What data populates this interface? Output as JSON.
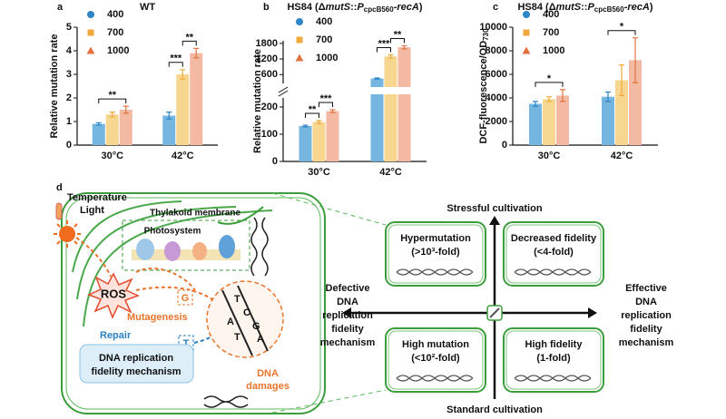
{
  "chart_data": [
    {
      "type": "bar",
      "panel": "a",
      "title_parts": [
        "WT"
      ],
      "y_label_parts": [
        "Relative mutation rate"
      ],
      "categories": [
        "30°C",
        "42°C"
      ],
      "series": [
        {
          "name": "400",
          "marker": "circle",
          "color": "#74b6e0",
          "marker_color": "#2f86c8",
          "values": [
            0.9,
            1.25
          ],
          "errors": [
            0.05,
            0.15
          ]
        },
        {
          "name": "700",
          "marker": "square",
          "color": "#f7d690",
          "marker_color": "#eea93a",
          "values": [
            1.3,
            3.0
          ],
          "errors": [
            0.1,
            0.2
          ]
        },
        {
          "name": "1000",
          "marker": "triangle",
          "color": "#f3b9a2",
          "marker_color": "#e2733f",
          "values": [
            1.5,
            3.9
          ],
          "errors": [
            0.15,
            0.2
          ]
        }
      ],
      "ylim": [
        0,
        5
      ],
      "yticks": [
        0,
        1,
        2,
        3,
        4,
        5
      ],
      "annotations": [
        "**",
        "***",
        "**"
      ]
    },
    {
      "type": "bar",
      "panel": "b",
      "title_parts": [
        "HS84 (Δ",
        "mutS",
        "::",
        "P",
        "cpcB560",
        "-recA",
        ")"
      ],
      "y_label_parts": [
        "Relative mutation rate"
      ],
      "categories": [
        "30°C",
        "42°C"
      ],
      "series": [
        {
          "name": "400",
          "marker": "circle",
          "color": "#74b6e0",
          "marker_color": "#2f86c8",
          "values": [
            130,
            450
          ],
          "errors": [
            3,
            20
          ]
        },
        {
          "name": "700",
          "marker": "square",
          "color": "#f7d690",
          "marker_color": "#eea93a",
          "values": [
            145,
            1300
          ],
          "errors": [
            5,
            60
          ]
        },
        {
          "name": "1000",
          "marker": "triangle",
          "color": "#f3b9a2",
          "marker_color": "#e2733f",
          "values": [
            185,
            1650
          ],
          "errors": [
            5,
            60
          ]
        }
      ],
      "ylim": [
        0,
        1900
      ],
      "axis_break": [
        220,
        400
      ],
      "yticks": [
        0,
        100,
        200,
        600,
        1200,
        1800
      ],
      "annotations": [
        "**",
        "***",
        "***",
        "**"
      ]
    },
    {
      "type": "bar",
      "panel": "c",
      "title_parts": [
        "HS84 (Δ",
        "mutS",
        "::",
        "P",
        "cpcB560",
        "-recA",
        ")"
      ],
      "y_label_parts": [
        "DCF-fluorescence/OD",
        "730"
      ],
      "categories": [
        "30°C",
        "42°C"
      ],
      "series": [
        {
          "name": "400",
          "marker": "circle",
          "color": "#74b6e0",
          "marker_color": "#2f86c8",
          "values": [
            3500,
            4100
          ],
          "errors": [
            200,
            400
          ]
        },
        {
          "name": "700",
          "marker": "square",
          "color": "#f7d690",
          "marker_color": "#eea93a",
          "values": [
            3900,
            5500
          ],
          "errors": [
            200,
            1300
          ]
        },
        {
          "name": "1000",
          "marker": "triangle",
          "color": "#f3b9a2",
          "marker_color": "#e2733f",
          "values": [
            4200,
            7200
          ],
          "errors": [
            500,
            1900
          ]
        }
      ],
      "ylim": [
        0,
        10000
      ],
      "yticks": [
        0,
        2000,
        4000,
        6000,
        8000,
        10000
      ],
      "annotations": [
        "*",
        "*"
      ]
    }
  ],
  "diagram": {
    "panel": "d",
    "temperature": "Temperature",
    "light": "Light",
    "thylakoid": "Thylakoid membrane",
    "photosystem": "Photosystem",
    "ros": "ROS",
    "mutagenesis": "Mutagenesis",
    "repair": "Repair",
    "fidelity_box": [
      "DNA replication",
      "fidelity mechanism"
    ],
    "damages": [
      "DNA",
      "damages"
    ],
    "lesion_bases": [
      "G",
      "T"
    ],
    "dna_bases": [
      "T",
      "C",
      "G",
      "A",
      "A",
      "T"
    ],
    "quadrant": {
      "top": "Stressful cultivation",
      "bottom": "Standard cultivation",
      "left": [
        "Defective",
        "DNA",
        "replication",
        "fidelity",
        "mechanism"
      ],
      "right": [
        "Effective",
        "DNA",
        "replication",
        "fidelity",
        "mechanism"
      ],
      "boxes": [
        {
          "title": "Hypermutation",
          "detail": "(>10³-fold)"
        },
        {
          "title": "Decreased fidelity",
          "detail": "(<4-fold)"
        },
        {
          "title": "High mutation",
          "detail": "(<10²-fold)"
        },
        {
          "title": "High fidelity",
          "detail": "(1-fold)"
        }
      ]
    }
  }
}
